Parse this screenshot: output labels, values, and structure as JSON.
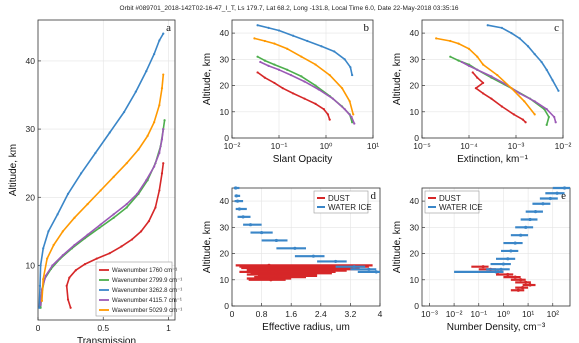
{
  "title": "Orbit #089701_2018-142T02-16-47_I_T, Ls 179.7, Lat 68.2, Long -131.8, Local Time 6.0, Date 22-May-2018 03:35:16",
  "colors": {
    "red": "#d62728",
    "blue": "#3a86c8",
    "orange": "#ff9900",
    "green": "#4cae4c",
    "purple": "#9b59b6"
  },
  "chart_data": [
    {
      "id": "a",
      "letter": "a",
      "type": "line",
      "xlabel": "Transmission",
      "ylabel": "Altitude, km",
      "xlim": [
        0,
        1.05
      ],
      "ylim": [
        2,
        46
      ],
      "xticks": [
        "0",
        "0.5",
        "1"
      ],
      "xtick_vals": [
        0,
        0.5,
        1
      ],
      "yticks": [
        "10",
        "20",
        "30",
        "40"
      ],
      "ytick_vals": [
        10,
        20,
        30,
        40
      ],
      "series": [
        {
          "name": "Wavenumber 1760 cm⁻¹",
          "color": "#d62728",
          "x": [
            0.25,
            0.23,
            0.22,
            0.24,
            0.29,
            0.36,
            0.45,
            0.55,
            0.64,
            0.72,
            0.79,
            0.85,
            0.9,
            0.93,
            0.95,
            0.96
          ],
          "y": [
            3.8,
            5,
            7,
            8.2,
            9.3,
            10.2,
            11,
            11.8,
            12.8,
            13.8,
            15,
            16.5,
            18.5,
            21,
            23.5,
            25
          ]
        },
        {
          "name": "Wavenumber 2799.9 cm⁻¹",
          "color": "#4cae4c",
          "x": [
            0.02,
            0.03,
            0.05,
            0.1,
            0.17,
            0.26,
            0.36,
            0.47,
            0.58,
            0.68,
            0.77,
            0.84,
            0.9,
            0.94,
            0.96,
            0.97
          ],
          "y": [
            3.8,
            6,
            8,
            9.5,
            11,
            12.5,
            14,
            15.5,
            17,
            18.5,
            20.5,
            22.5,
            25,
            27.5,
            30,
            31.3
          ]
        },
        {
          "name": "Wavenumber 3262.8 cm⁻¹",
          "color": "#3a86c8",
          "x": [
            0.01,
            0.015,
            0.02,
            0.04,
            0.08,
            0.15,
            0.23,
            0.33,
            0.44,
            0.55,
            0.66,
            0.75,
            0.83,
            0.89,
            0.93,
            0.96
          ],
          "y": [
            3.8,
            7,
            10,
            12.5,
            15,
            17.5,
            20.5,
            23.5,
            26.5,
            29.5,
            32.5,
            35.5,
            38.5,
            41,
            43,
            44
          ]
        },
        {
          "name": "Wavenumber 4115.7 cm⁻¹",
          "color": "#9b59b6",
          "x": [
            0.02,
            0.03,
            0.06,
            0.11,
            0.19,
            0.28,
            0.38,
            0.48,
            0.58,
            0.68,
            0.76,
            0.83,
            0.89,
            0.93,
            0.95,
            0.96
          ],
          "y": [
            4.2,
            6.5,
            8.5,
            10,
            11.5,
            13,
            14.5,
            16,
            17.5,
            19,
            20.5,
            22.5,
            24.5,
            26.5,
            28.5,
            30
          ]
        },
        {
          "name": "Wavenumber 5029.9 cm⁻¹",
          "color": "#ff9900",
          "x": [
            0.03,
            0.04,
            0.07,
            0.12,
            0.19,
            0.28,
            0.38,
            0.48,
            0.58,
            0.68,
            0.77,
            0.84,
            0.89,
            0.93,
            0.95,
            0.96
          ],
          "y": [
            4.8,
            8,
            11,
            13,
            15,
            17,
            19,
            21,
            23,
            25,
            27,
            29,
            31,
            33.5,
            36,
            38
          ]
        }
      ]
    },
    {
      "id": "b",
      "letter": "b",
      "type": "line",
      "xlabel": "Slant Opacity",
      "ylabel": "Altitude, km",
      "xscale": "log",
      "xlim": [
        0.01,
        10
      ],
      "ylim": [
        0,
        45
      ],
      "xticks": [
        "10⁻²",
        "10⁻¹",
        "10⁰",
        "10¹"
      ],
      "xtick_vals": [
        0.01,
        0.1,
        1,
        10
      ],
      "yticks": [
        "0",
        "10",
        "20",
        "30",
        "40"
      ],
      "ytick_vals": [
        0,
        10,
        20,
        30,
        40
      ],
      "series": [
        {
          "name": "1760",
          "color": "#d62728",
          "x": [
            0.035,
            0.05,
            0.08,
            0.12,
            0.2,
            0.35,
            0.6,
            0.9,
            1.1,
            1.2
          ],
          "y": [
            25,
            23,
            21,
            19,
            17,
            15,
            13,
            11,
            9,
            7
          ]
        },
        {
          "name": "2799.9",
          "color": "#4cae4c",
          "x": [
            0.035,
            0.05,
            0.08,
            0.15,
            0.3,
            0.6,
            1.2,
            2.2,
            3.2,
            3.6
          ],
          "y": [
            31,
            29.5,
            28,
            26,
            23.5,
            20,
            16,
            12,
            9,
            6
          ]
        },
        {
          "name": "3262.8",
          "color": "#3a86c8",
          "x": [
            0.035,
            0.06,
            0.1,
            0.2,
            0.4,
            0.8,
            1.5,
            2.5,
            3.3,
            3.6
          ],
          "y": [
            43,
            42,
            41,
            39,
            37,
            35,
            33,
            30,
            27,
            24
          ]
        },
        {
          "name": "4115.7",
          "color": "#9b59b6",
          "x": [
            0.04,
            0.06,
            0.1,
            0.18,
            0.35,
            0.7,
            1.4,
            2.5,
            3.5,
            4.0
          ],
          "y": [
            29,
            27.5,
            26,
            24,
            21.5,
            18.5,
            15,
            11,
            8,
            5.5
          ]
        },
        {
          "name": "5029.9",
          "color": "#ff9900",
          "x": [
            0.03,
            0.05,
            0.08,
            0.15,
            0.3,
            0.6,
            1.2,
            2.2,
            3.2,
            3.8
          ],
          "y": [
            38,
            37,
            36,
            34,
            31,
            28,
            24,
            19,
            14,
            9
          ]
        }
      ]
    },
    {
      "id": "c",
      "letter": "c",
      "type": "line",
      "xlabel": "Extinction, km⁻¹",
      "ylabel": "Altitude, km",
      "xscale": "log",
      "xlim": [
        1e-05,
        0.01
      ],
      "ylim": [
        0,
        45
      ],
      "xticks": [
        "10⁻⁵",
        "10⁻⁴",
        "10⁻³",
        "10⁻²"
      ],
      "xtick_vals": [
        1e-05,
        0.0001,
        0.001,
        0.01
      ],
      "yticks": [
        "0",
        "10",
        "20",
        "30",
        "40"
      ],
      "ytick_vals": [
        0,
        10,
        20,
        30,
        40
      ],
      "series": [
        {
          "name": "1760",
          "color": "#d62728",
          "x": [
            0.00012,
            0.00015,
            0.0002,
            0.00014,
            0.0002,
            0.0003,
            0.0005,
            0.0009,
            0.0014,
            0.0016
          ],
          "y": [
            25,
            23,
            21,
            19,
            17,
            15,
            12,
            9,
            7,
            6
          ]
        },
        {
          "name": "2799.9",
          "color": "#4cae4c",
          "x": [
            4e-05,
            6e-05,
            0.0001,
            0.00015,
            0.0003,
            0.0008,
            0.002,
            0.004,
            0.005,
            0.0045
          ],
          "y": [
            31,
            29.5,
            28,
            26,
            23,
            19,
            15,
            11,
            8,
            5
          ]
        },
        {
          "name": "3262.8",
          "color": "#3a86c8",
          "x": [
            0.00025,
            0.0005,
            0.0008,
            0.0012,
            0.0018,
            0.0025,
            0.0035,
            0.0045,
            0.006,
            0.008
          ],
          "y": [
            43,
            42,
            40,
            38,
            35,
            32,
            29,
            26,
            22,
            18
          ]
        },
        {
          "name": "4115.7",
          "color": "#9b59b6",
          "x": [
            7e-05,
            0.0001,
            0.00015,
            0.0003,
            0.0006,
            0.0012,
            0.0025,
            0.0045,
            0.0065,
            0.007
          ],
          "y": [
            29,
            27.5,
            26,
            23.5,
            20.5,
            17,
            14,
            11,
            8,
            6
          ]
        },
        {
          "name": "5029.9",
          "color": "#ff9900",
          "x": [
            2e-05,
            4e-05,
            6e-05,
            0.0001,
            0.00015,
            0.0002,
            0.0004,
            0.0008,
            0.0015,
            0.0025
          ],
          "y": [
            38,
            37,
            36,
            34,
            31,
            28,
            24,
            19,
            14,
            9
          ]
        }
      ]
    },
    {
      "id": "d",
      "letter": "d",
      "type": "scatter",
      "xlabel": "Effective radius, um",
      "ylabel": "Altitude, km",
      "xlim": [
        0,
        4
      ],
      "ylim": [
        0,
        45
      ],
      "xticks": [
        "0",
        "0.8",
        "1.6",
        "2.4",
        "3.2",
        "4"
      ],
      "xtick_vals": [
        0,
        0.8,
        1.6,
        2.4,
        3.2,
        4
      ],
      "yticks": [
        "0",
        "10",
        "20",
        "30",
        "40"
      ],
      "ytick_vals": [
        0,
        10,
        20,
        30,
        40
      ],
      "legend": [
        "DUST",
        "WATER ICE"
      ],
      "legend_position": "top-right",
      "series": [
        {
          "name": "DUST",
          "color": "#d62728",
          "x": [
            1.0,
            1.1,
            1.05,
            1.2,
            1.1,
            1.0,
            1.2,
            1.1,
            1.3,
            1.2,
            1.0,
            1.05
          ],
          "y": [
            15.5,
            15,
            14.5,
            14,
            13.5,
            13,
            12.5,
            12,
            11.5,
            11,
            10.5,
            10
          ],
          "xerr_low": [
            0.9,
            0.9,
            0.8,
            0.8,
            0.7,
            0.8,
            0.7,
            0.7,
            0.6,
            0.6,
            0.6,
            0.6
          ],
          "xerr_high": [
            2.8,
            2.6,
            2.4,
            2.2,
            2.0,
            1.8,
            1.5,
            1.2,
            1.0,
            0.8,
            0.6,
            0.4
          ]
        },
        {
          "name": "WATER ICE",
          "color": "#3a86c8",
          "x": [
            0.1,
            0.12,
            0.15,
            0.2,
            0.3,
            0.5,
            0.8,
            1.2,
            1.7,
            2.2,
            2.8,
            3.3,
            3.7,
            3.9
          ],
          "y": [
            45,
            42,
            40,
            37,
            34,
            31,
            28,
            25,
            22,
            19,
            17,
            15,
            14,
            13
          ],
          "xerr_low": [
            0.05,
            0.05,
            0.08,
            0.1,
            0.15,
            0.2,
            0.3,
            0.4,
            0.5,
            0.5,
            0.5,
            0.5,
            0.5,
            0.5
          ],
          "xerr_high": [
            0.1,
            0.1,
            0.15,
            0.2,
            0.2,
            0.3,
            0.3,
            0.3,
            0.3,
            0.3,
            0.3,
            0.3,
            0.2,
            0.1
          ]
        }
      ]
    },
    {
      "id": "e",
      "letter": "e",
      "type": "scatter",
      "xlabel": "Number Density, cm⁻³",
      "ylabel": "Altitude, km",
      "xscale": "log",
      "xlim": [
        0.0005,
        500
      ],
      "ylim": [
        0,
        45
      ],
      "xticks": [
        "10⁻³",
        "10⁻²",
        "10⁻¹",
        "10⁰",
        "10¹",
        "10²"
      ],
      "xtick_vals": [
        0.001,
        0.01,
        0.1,
        1,
        10,
        100
      ],
      "yticks": [
        "0",
        "10",
        "20",
        "30",
        "40"
      ],
      "ytick_vals": [
        0,
        10,
        20,
        30,
        40
      ],
      "legend": [
        "DUST",
        "WATER ICE"
      ],
      "legend_position": "top-left",
      "series": [
        {
          "name": "DUST",
          "color": "#d62728",
          "x": [
            0.15,
            0.3,
            0.6,
            1.5,
            3,
            5,
            8,
            12,
            6,
            4
          ],
          "y": [
            15,
            14,
            13,
            12,
            11,
            10,
            9,
            8,
            7,
            6
          ],
          "xerr_low": [
            0.1,
            0.2,
            0.4,
            1.0,
            2,
            3,
            5,
            6,
            3,
            2
          ],
          "xerr_high": [
            0.1,
            0.2,
            0.4,
            1,
            2,
            3,
            5,
            8,
            4,
            3
          ]
        },
        {
          "name": "WATER ICE",
          "color": "#3a86c8",
          "x": [
            300,
            150,
            80,
            40,
            20,
            12,
            8,
            5,
            3,
            2,
            1.5,
            1.0,
            0.8,
            0.5
          ],
          "y": [
            45,
            43,
            41,
            39,
            36,
            33,
            30,
            27,
            24,
            21,
            18,
            16,
            14,
            13
          ],
          "xerr_low": [
            200,
            100,
            50,
            25,
            12,
            7,
            5,
            3,
            2,
            1.2,
            1.0,
            0.7,
            0.6,
            0.49
          ],
          "xerr_high": [
            200,
            150,
            80,
            40,
            20,
            12,
            8,
            5,
            3,
            2,
            1.5,
            1.0,
            1.0,
            0.5
          ]
        }
      ]
    }
  ]
}
